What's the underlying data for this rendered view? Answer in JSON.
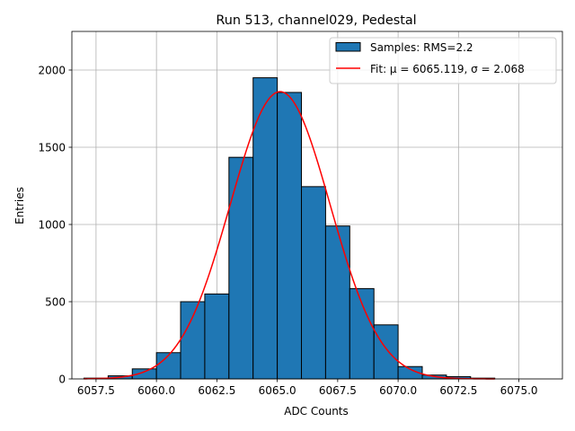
{
  "chart_data": {
    "type": "bar",
    "title": "Run 513, channel029, Pedestal",
    "xlabel": "ADC Counts",
    "ylabel": "Entries",
    "xlim": [
      6056.5,
      6076.8
    ],
    "ylim": [
      0,
      2250
    ],
    "xticks": [
      6057.5,
      6060.0,
      6062.5,
      6065.0,
      6067.5,
      6070.0,
      6072.5,
      6075.0
    ],
    "xtick_labels": [
      "6057.5",
      "6060.0",
      "6062.5",
      "6065.0",
      "6067.5",
      "6070.0",
      "6072.5",
      "6075.0"
    ],
    "yticks": [
      0,
      500,
      1000,
      1500,
      2000
    ],
    "ytick_labels": [
      "0",
      "500",
      "1000",
      "1500",
      "2000"
    ],
    "grid": true,
    "legend_position": "top-right",
    "bin_edges": [
      6057,
      6058,
      6059,
      6060,
      6061,
      6062,
      6063,
      6064,
      6065,
      6066,
      6067,
      6068,
      6069,
      6070,
      6071,
      6072,
      6073,
      6074,
      6075,
      6076
    ],
    "series": [
      {
        "name": "Samples: RMS=2.2",
        "kind": "histogram",
        "color": "#1f77b4",
        "edgecolor": "#000000",
        "values": [
          5,
          20,
          65,
          170,
          500,
          550,
          1435,
          1950,
          1855,
          1245,
          990,
          585,
          350,
          80,
          25,
          15,
          5,
          0,
          0
        ]
      },
      {
        "name": "Fit: μ = 6065.119, σ = 2.068",
        "kind": "gaussian-fit",
        "color": "#ff0000",
        "mu": 6065.119,
        "sigma": 2.068,
        "amplitude": 1860,
        "x_range": [
          6057,
          6074
        ]
      }
    ]
  }
}
